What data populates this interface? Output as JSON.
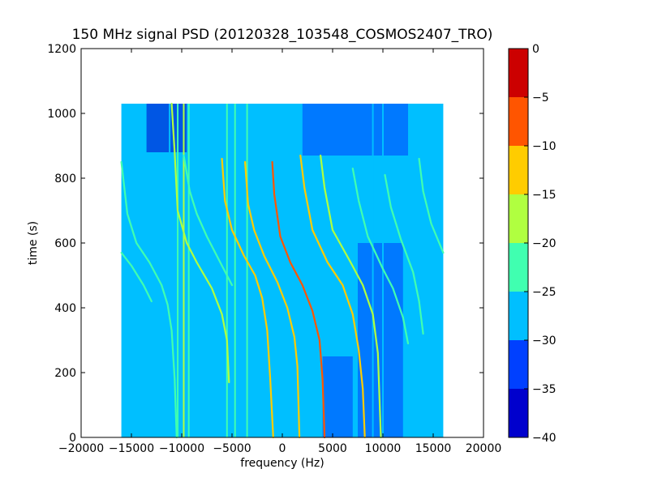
{
  "chart_data": {
    "type": "heatmap",
    "title": "150 MHz signal PSD (20120328_103548_COSMOS2407_TRO)",
    "xlabel": "frequency (Hz)",
    "ylabel": "time (s)",
    "xlim": [
      -20000,
      20000
    ],
    "ylim": [
      0,
      1200
    ],
    "xticks": [
      -20000,
      -15000,
      -10000,
      -5000,
      0,
      5000,
      10000,
      15000,
      20000
    ],
    "xtick_labels": [
      "−20000",
      "−15000",
      "−10000",
      "−5000",
      "0",
      "5000",
      "10000",
      "15000",
      "20000"
    ],
    "yticks": [
      0,
      200,
      400,
      600,
      800,
      1000,
      1200
    ],
    "ytick_labels": [
      "0",
      "200",
      "400",
      "600",
      "800",
      "1000",
      "1200"
    ],
    "data_extent": {
      "x": [
        -16000,
        16000
      ],
      "y": [
        0,
        1030
      ]
    },
    "background_level": -27.5,
    "grid": false,
    "colorbar": {
      "min": -40,
      "max": 0,
      "levels": [
        -40,
        -35,
        -30,
        -25,
        -20,
        -15,
        -10,
        -5,
        0
      ],
      "tick_labels": [
        "−40",
        "−35",
        "−30",
        "−25",
        "−20",
        "−15",
        "−10",
        "−5",
        "0"
      ],
      "colors": [
        "#0000cd",
        "#0040ff",
        "#00bfff",
        "#40ffb0",
        "#b0ff40",
        "#ffcc00",
        "#ff5500",
        "#cc0000"
      ]
    },
    "low_noise_regions": [
      {
        "x": [
          -13500,
          -9500
        ],
        "y": [
          880,
          1030
        ],
        "level": -37.5
      },
      {
        "x": [
          2000,
          12500
        ],
        "y": [
          870,
          1030
        ],
        "level": -32.5
      },
      {
        "x": [
          7500,
          12000
        ],
        "y": [
          0,
          600
        ],
        "level": -32.5
      },
      {
        "x": [
          4000,
          7000
        ],
        "y": [
          0,
          250
        ],
        "level": -32.5
      }
    ],
    "vertical_lines": [
      {
        "x": -11200,
        "level": -27.5
      },
      {
        "x": -10400,
        "level": -22.5
      },
      {
        "x": -9800,
        "level": -17.5
      },
      {
        "x": -9300,
        "level": -22.5
      },
      {
        "x": -8800,
        "level": -27.5
      },
      {
        "x": -5500,
        "level": -22.5
      },
      {
        "x": -5000,
        "level": -27.5
      },
      {
        "x": -4700,
        "level": -22.5
      },
      {
        "x": -3500,
        "level": -22.5
      },
      {
        "x": -1500,
        "level": -27.5
      },
      {
        "x": 9000,
        "level": -27.5
      },
      {
        "x": 10000,
        "level": -27.5
      }
    ],
    "series": [
      {
        "level": -22.5,
        "points": [
          [
            -16000,
            850
          ],
          [
            -15400,
            690
          ],
          [
            -14500,
            600
          ],
          [
            -13200,
            540
          ],
          [
            -12000,
            470
          ],
          [
            -11400,
            410
          ],
          [
            -11000,
            330
          ],
          [
            -10700,
            180
          ],
          [
            -10500,
            0
          ]
        ]
      },
      {
        "level": -22.5,
        "points": [
          [
            -16000,
            570
          ],
          [
            -15000,
            530
          ],
          [
            -13800,
            470
          ],
          [
            -13000,
            420
          ]
        ]
      },
      {
        "level": -17.5,
        "points": [
          [
            -11000,
            1030
          ],
          [
            -10700,
            880
          ],
          [
            -10400,
            700
          ],
          [
            -9500,
            600
          ],
          [
            -8500,
            540
          ],
          [
            -7000,
            460
          ],
          [
            -6000,
            380
          ],
          [
            -5500,
            300
          ],
          [
            -5300,
            170
          ]
        ]
      },
      {
        "level": -22.5,
        "points": [
          [
            -9800,
            870
          ],
          [
            -9200,
            760
          ],
          [
            -8500,
            690
          ],
          [
            -7500,
            620
          ],
          [
            -6000,
            530
          ],
          [
            -5000,
            470
          ]
        ]
      },
      {
        "level": -12.5,
        "points": [
          [
            -6000,
            860
          ],
          [
            -5700,
            730
          ],
          [
            -5000,
            640
          ],
          [
            -3800,
            560
          ],
          [
            -2700,
            500
          ],
          [
            -2000,
            430
          ],
          [
            -1500,
            330
          ],
          [
            -1200,
            180
          ],
          [
            -900,
            0
          ]
        ]
      },
      {
        "level": -12.5,
        "points": [
          [
            -3700,
            850
          ],
          [
            -3400,
            720
          ],
          [
            -2800,
            640
          ],
          [
            -1800,
            560
          ],
          [
            -500,
            480
          ],
          [
            500,
            400
          ],
          [
            1200,
            310
          ],
          [
            1500,
            220
          ],
          [
            1700,
            0
          ]
        ]
      },
      {
        "level": -7.5,
        "points": [
          [
            -1000,
            850
          ],
          [
            -800,
            750
          ],
          [
            -200,
            620
          ],
          [
            800,
            540
          ],
          [
            2000,
            470
          ],
          [
            3000,
            390
          ],
          [
            3700,
            300
          ],
          [
            4000,
            180
          ],
          [
            4200,
            0
          ]
        ]
      },
      {
        "level": -12.5,
        "points": [
          [
            1800,
            870
          ],
          [
            2200,
            770
          ],
          [
            3000,
            640
          ],
          [
            4500,
            540
          ],
          [
            6000,
            470
          ],
          [
            7000,
            380
          ],
          [
            7600,
            270
          ],
          [
            8000,
            150
          ],
          [
            8200,
            0
          ]
        ]
      },
      {
        "level": -17.5,
        "points": [
          [
            3800,
            870
          ],
          [
            4200,
            770
          ],
          [
            5000,
            640
          ],
          [
            6800,
            540
          ],
          [
            8000,
            470
          ],
          [
            9000,
            380
          ],
          [
            9500,
            260
          ],
          [
            9800,
            0
          ]
        ]
      },
      {
        "level": -22.5,
        "points": [
          [
            7000,
            830
          ],
          [
            7600,
            730
          ],
          [
            8500,
            620
          ],
          [
            10000,
            520
          ],
          [
            11000,
            460
          ],
          [
            12000,
            370
          ],
          [
            12500,
            290
          ]
        ]
      },
      {
        "level": -22.5,
        "points": [
          [
            10200,
            810
          ],
          [
            10800,
            710
          ],
          [
            11800,
            610
          ],
          [
            13000,
            510
          ],
          [
            13600,
            420
          ],
          [
            14000,
            320
          ]
        ]
      },
      {
        "level": -22.5,
        "points": [
          [
            13600,
            860
          ],
          [
            14000,
            760
          ],
          [
            14800,
            660
          ],
          [
            16000,
            570
          ]
        ]
      }
    ]
  }
}
